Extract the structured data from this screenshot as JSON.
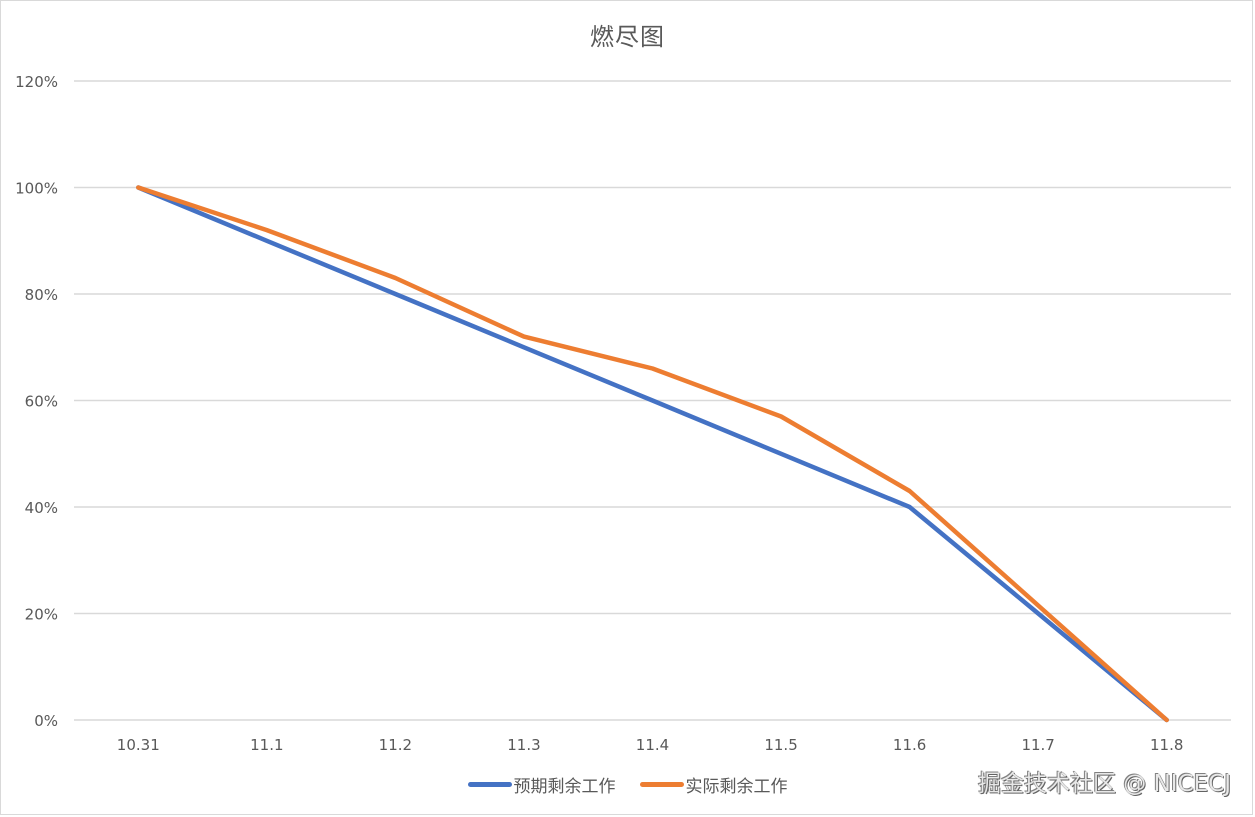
{
  "chart_data": {
    "type": "line",
    "title": "燃尽图",
    "xlabel": "",
    "ylabel": "",
    "categories": [
      "10.31",
      "11.1",
      "11.2",
      "11.3",
      "11.4",
      "11.5",
      "11.6",
      "11.7",
      "11.8"
    ],
    "series": [
      {
        "name": "预期剩余工作",
        "color": "#4472c4",
        "values": [
          100,
          90,
          80,
          70,
          60,
          50,
          40,
          20,
          0
        ]
      },
      {
        "name": "实际剩余工作",
        "color": "#ed7d31",
        "values": [
          100,
          92,
          83,
          72,
          66,
          57,
          43,
          21.5,
          0
        ]
      }
    ],
    "yticks": [
      "0%",
      "20%",
      "40%",
      "60%",
      "80%",
      "100%",
      "120%"
    ],
    "ylim": [
      0,
      120
    ],
    "y_unit": "%",
    "grid": true,
    "legend_position": "bottom"
  },
  "watermark": "掘金技术社区 @ NICECJ"
}
